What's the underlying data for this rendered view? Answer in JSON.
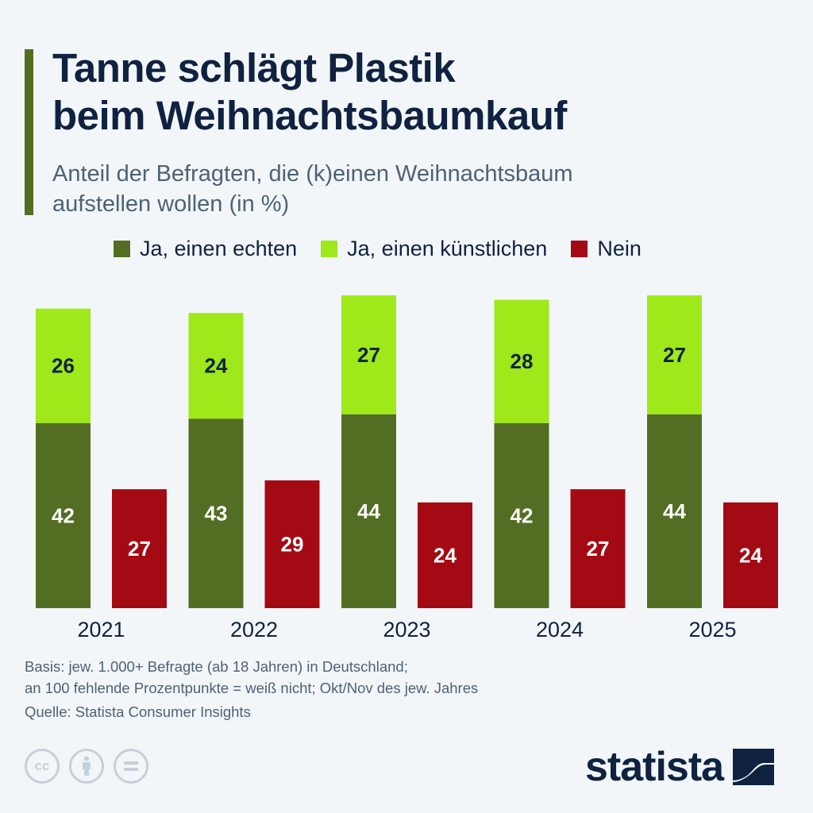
{
  "header": {
    "title_line1": "Tanne schlägt Plastik",
    "title_line2": "beim Weihnachtsbaumkauf",
    "subtitle_line1": "Anteil der Befragten, die (k)einen Weihnachtsbaum",
    "subtitle_line2": "aufstellen wollen (in %)"
  },
  "legend": [
    {
      "label": "Ja, einen echten",
      "color": "#536e22"
    },
    {
      "label": "Ja, einen künstlichen",
      "color": "#9fe81a"
    },
    {
      "label": "Nein",
      "color": "#a30a13"
    }
  ],
  "footer": {
    "note_line1": "Basis: jew. 1.000+ Befragte (ab 18 Jahren) in Deutschland;",
    "note_line2": "an 100 fehlende Prozentpunkte = weiß nicht; Okt/Nov des jew. Jahres",
    "source": "Quelle: Statista Consumer Insights",
    "license_icons": [
      "cc-icon",
      "attribution-icon",
      "no-derivatives-icon"
    ],
    "cc_label": "cc",
    "brand": "statista"
  },
  "chart_data": {
    "type": "bar",
    "stacked_groups": true,
    "title": "Tanne schlägt Plastik beim Weihnachtsbaumkauf",
    "subtitle": "Anteil der Befragten, die (k)einen Weihnachtsbaum aufstellen wollen (in %)",
    "xlabel": "",
    "ylabel": "",
    "categories": [
      "2021",
      "2022",
      "2023",
      "2024",
      "2025"
    ],
    "series": [
      {
        "name": "Ja, einen echten",
        "stack": "ja",
        "color": "#536e22",
        "label_color": "#ffffff",
        "values": [
          42,
          43,
          44,
          42,
          44
        ]
      },
      {
        "name": "Ja, einen künstlichen",
        "stack": "ja",
        "color": "#9fe81a",
        "label_color": "#0f2240",
        "values": [
          26,
          24,
          27,
          28,
          27
        ]
      },
      {
        "name": "Nein",
        "stack": "nein",
        "color": "#a30a13",
        "label_color": "#ffffff",
        "values": [
          27,
          29,
          24,
          27,
          24
        ]
      }
    ],
    "ylim": [
      0,
      71
    ],
    "grid": false,
    "legend_position": "top"
  }
}
